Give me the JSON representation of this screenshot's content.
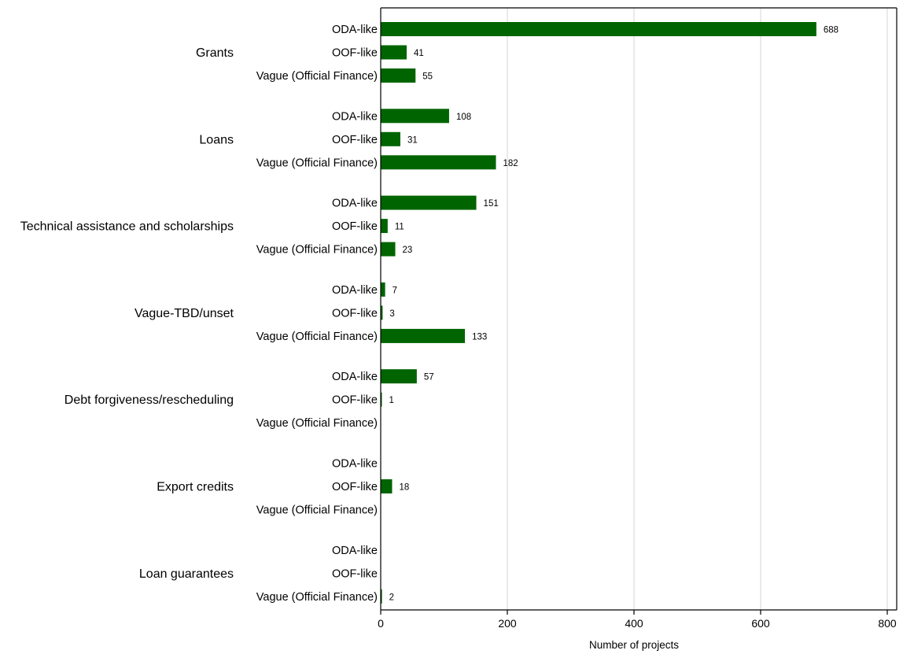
{
  "chart_data": {
    "type": "bar",
    "orientation": "horizontal",
    "xlabel": "Number of projects",
    "xlim": [
      0,
      800
    ],
    "xticks": [
      0,
      200,
      400,
      600,
      800
    ],
    "grid": "vertical",
    "bar_color": "#006400",
    "subcategories": [
      "ODA-like",
      "OOF-like",
      "Vague (Official Finance)"
    ],
    "groups": [
      {
        "name": "Grants",
        "values": [
          688,
          41,
          55
        ]
      },
      {
        "name": "Loans",
        "values": [
          108,
          31,
          182
        ]
      },
      {
        "name": "Technical assistance and scholarships",
        "values": [
          151,
          11,
          23
        ]
      },
      {
        "name": "Vague-TBD/unset",
        "values": [
          7,
          3,
          133
        ]
      },
      {
        "name": "Debt forgiveness/rescheduling",
        "values": [
          57,
          1,
          null
        ]
      },
      {
        "name": "Export credits",
        "values": [
          null,
          18,
          null
        ]
      },
      {
        "name": "Loan guarantees",
        "values": [
          null,
          null,
          2
        ]
      }
    ]
  }
}
